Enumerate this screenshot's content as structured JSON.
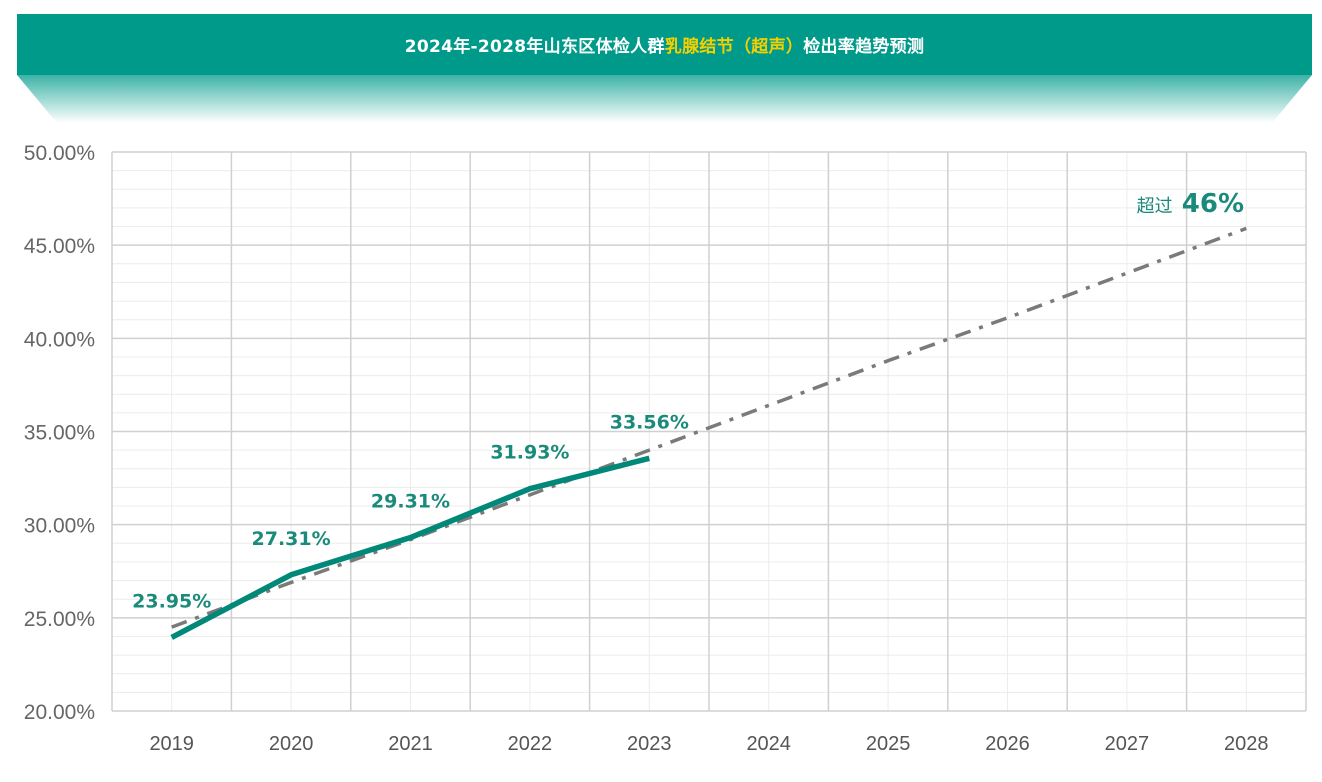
{
  "title": {
    "part1": "2024年-2028年山东区体检人群",
    "highlight": "乳腺结节（超声）",
    "part2": "检出率趋势预测"
  },
  "colors": {
    "banner": "#009a8a",
    "highlight": "#f5d000",
    "actual_line": "#008878",
    "trend_line": "#7a7a7a",
    "label": "#1a8a7a",
    "grid_major": "#d0d0d0",
    "grid_minor": "#ececec"
  },
  "annotation": {
    "prefix": "超过",
    "value": "46%"
  },
  "chart_data": {
    "type": "line",
    "title": "2024年-2028年山东区体检人群乳腺结节（超声）检出率趋势预测",
    "categories": [
      "2019",
      "2020",
      "2021",
      "2022",
      "2023",
      "2024",
      "2025",
      "2026",
      "2027",
      "2028"
    ],
    "ylim": [
      20,
      50
    ],
    "yticks": [
      "20.00%",
      "25.00%",
      "30.00%",
      "35.00%",
      "40.00%",
      "45.00%",
      "50.00%"
    ],
    "yticks_values": [
      20,
      25,
      30,
      35,
      40,
      45,
      50
    ],
    "grid": true,
    "series": [
      {
        "style": "solid",
        "values": [
          23.95,
          27.31,
          29.31,
          31.93,
          33.56,
          null,
          null,
          null,
          null,
          null
        ],
        "labels": [
          "23.95%",
          "27.31%",
          "29.31%",
          "31.93%",
          "33.56%"
        ]
      },
      {
        "style": "dash-dot",
        "values": [
          24.5,
          26.9,
          29.2,
          31.6,
          34.0,
          36.4,
          38.8,
          41.1,
          43.5,
          45.9
        ]
      }
    ]
  }
}
